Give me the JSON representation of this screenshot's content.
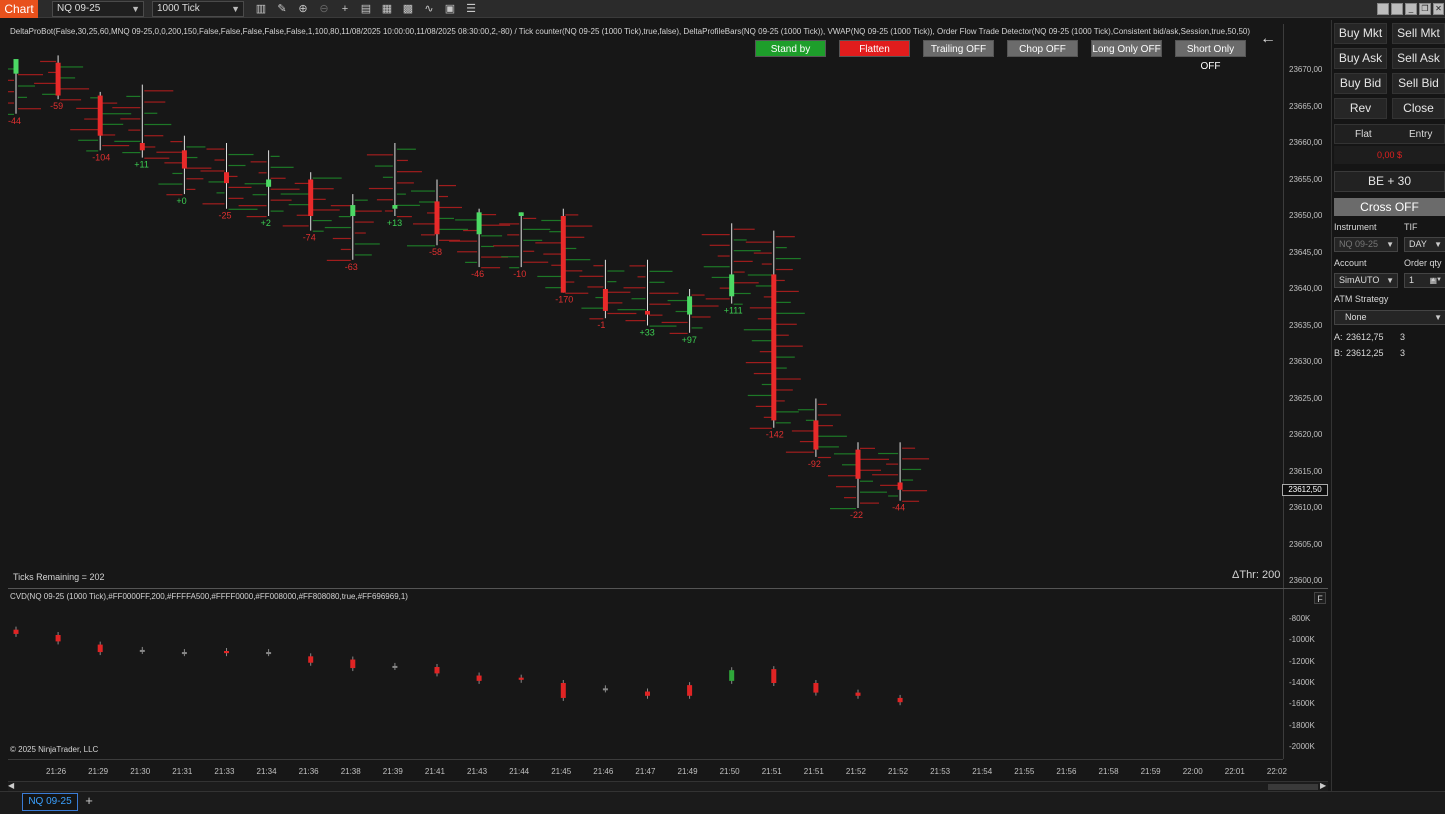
{
  "toolbar": {
    "chart_tab": "Chart",
    "instrument": "NQ 09-25",
    "interval": "1000 Tick"
  },
  "indicator_line": "DeltaProBot(False,30,25,60,MNQ 09-25,0,0,200,150,False,False,False,False,False,1,100,80,11/08/2025 10:00:00,11/08/2025 08:30:00,2,-80) / Tick counter(NQ 09-25 (1000 Tick),true,false), DeltaProfileBars(NQ 09-25 (1000 Tick)), VWAP(NQ 09-25 (1000 Tick)), Order Flow Trade Detector(NQ 09-25 (1000 Tick),Consistent bid/ask,Session,true,50,50)",
  "strategy_buttons": [
    {
      "label": "Stand by",
      "color": "#1e9e2b"
    },
    {
      "label": "Flatten",
      "color": "#e11d1d"
    },
    {
      "label": "Trailing OFF",
      "color": "#6b6b6b"
    },
    {
      "label": "Chop OFF",
      "color": "#6b6b6b"
    },
    {
      "label": "Long Only OFF",
      "color": "#6b6b6b"
    },
    {
      "label": "Short Only OFF",
      "color": "#6b6b6b"
    }
  ],
  "ticks_remaining": "Ticks Remaining = 202",
  "delta_threshold": "ΔThr: 200",
  "cvd_label": "CVD(NQ 09-25 (1000 Tick),#FF0000FF,200,#FFFFA500,#FFFF0000,#FF008000,#FF808080,true,#FF696969,1)",
  "copyright": "© 2025 NinjaTrader, LLC",
  "panel_collapse": "F",
  "price_axis": {
    "labels": [
      "23670,00",
      "23665,00",
      "23660,00",
      "23655,00",
      "23650,00",
      "23645,00",
      "23640,00",
      "23635,00",
      "23630,00",
      "23625,00",
      "23620,00",
      "23615,00",
      "23610,00",
      "23605,00",
      "23600,00"
    ],
    "current": "23612,50",
    "min": 23600,
    "max": 23670
  },
  "cvd_axis": {
    "labels": [
      "-800K",
      "-1000K",
      "-1200K",
      "-1400K",
      "-1600K",
      "-1800K",
      "-2000K"
    ],
    "min": -2000,
    "max": -800
  },
  "time_axis": [
    "21:26",
    "21:29",
    "21:30",
    "21:31",
    "21:33",
    "21:34",
    "21:36",
    "21:38",
    "21:39",
    "21:41",
    "21:43",
    "21:44",
    "21:45",
    "21:46",
    "21:47",
    "21:49",
    "21:50",
    "21:51",
    "21:51",
    "21:52",
    "21:52",
    "21:53",
    "21:54",
    "21:55",
    "21:56",
    "21:58",
    "21:59",
    "22:00",
    "22:01",
    "22:02"
  ],
  "candles": [
    {
      "o": 23669.5,
      "h": 23671,
      "l": 23664,
      "c": 23671.5,
      "d": "-44"
    },
    {
      "o": 23671,
      "h": 23672,
      "l": 23666,
      "c": 23666.5,
      "d": "-59"
    },
    {
      "o": 23666.5,
      "h": 23667,
      "l": 23659,
      "c": 23661,
      "d": "-104"
    },
    {
      "o": 23660,
      "h": 23668,
      "l": 23658,
      "c": 23659,
      "d": "+11"
    },
    {
      "o": 23659,
      "h": 23661,
      "l": 23653,
      "c": 23656.5,
      "d": "+0"
    },
    {
      "o": 23656,
      "h": 23660,
      "l": 23651,
      "c": 23654.5,
      "d": "-25"
    },
    {
      "o": 23654,
      "h": 23659,
      "l": 23650,
      "c": 23655,
      "d": "+2"
    },
    {
      "o": 23655,
      "h": 23656,
      "l": 23648,
      "c": 23650,
      "d": "-74"
    },
    {
      "o": 23650,
      "h": 23653,
      "l": 23644,
      "c": 23651.5,
      "d": "-63"
    },
    {
      "o": 23651,
      "h": 23660,
      "l": 23650,
      "c": 23651.5,
      "d": "+13"
    },
    {
      "o": 23652,
      "h": 23655,
      "l": 23646,
      "c": 23647.5,
      "d": "-58"
    },
    {
      "o": 23647.5,
      "h": 23651,
      "l": 23643,
      "c": 23650.5,
      "d": "-46"
    },
    {
      "o": 23650,
      "h": 23650.5,
      "l": 23643,
      "c": 23650.5,
      "d": "-10"
    },
    {
      "o": 23650,
      "h": 23651,
      "l": 23639.5,
      "c": 23639.5,
      "d": "-170"
    },
    {
      "o": 23640,
      "h": 23644,
      "l": 23636,
      "c": 23637,
      "d": "-1"
    },
    {
      "o": 23637,
      "h": 23644,
      "l": 23635,
      "c": 23636.5,
      "d": "+33"
    },
    {
      "o": 23636.5,
      "h": 23640,
      "l": 23634,
      "c": 23639,
      "d": "+97"
    },
    {
      "o": 23639,
      "h": 23649,
      "l": 23638,
      "c": 23642,
      "d": "+111"
    },
    {
      "o": 23642,
      "h": 23648,
      "l": 23621,
      "c": 23622,
      "d": "-142"
    },
    {
      "o": 23622,
      "h": 23625,
      "l": 23617,
      "c": 23618,
      "d": "-92"
    },
    {
      "o": 23618,
      "h": 23619,
      "l": 23610,
      "c": 23614,
      "d": "-22"
    },
    {
      "o": 23613.5,
      "h": 23619,
      "l": 23611,
      "c": 23612.5,
      "d": "-44"
    }
  ],
  "cvd_bars": [
    {
      "o": -900,
      "c": -940
    },
    {
      "o": -950,
      "c": -1010
    },
    {
      "o": -1040,
      "c": -1110
    },
    {
      "o": -1090,
      "c": -1100
    },
    {
      "o": -1110,
      "c": -1120
    },
    {
      "o": -1100,
      "c": -1120
    },
    {
      "o": -1110,
      "c": -1120
    },
    {
      "o": -1150,
      "c": -1210
    },
    {
      "o": -1180,
      "c": -1260
    },
    {
      "o": -1240,
      "c": -1250
    },
    {
      "o": -1250,
      "c": -1310
    },
    {
      "o": -1330,
      "c": -1380
    },
    {
      "o": -1350,
      "c": -1370
    },
    {
      "o": -1400,
      "c": -1540
    },
    {
      "o": -1450,
      "c": -1460
    },
    {
      "o": -1480,
      "c": -1520
    },
    {
      "o": -1420,
      "c": -1520
    },
    {
      "o": -1380,
      "c": -1280
    },
    {
      "o": -1270,
      "c": -1400
    },
    {
      "o": -1400,
      "c": -1490
    },
    {
      "o": -1490,
      "c": -1520
    },
    {
      "o": -1540,
      "c": -1580
    }
  ],
  "right_panel": {
    "buy_mkt": "Buy Mkt",
    "sell_mkt": "Sell Mkt",
    "buy_ask": "Buy Ask",
    "sell_ask": "Sell Ask",
    "buy_bid": "Buy Bid",
    "sell_bid": "Sell Bid",
    "rev": "Rev",
    "close": "Close",
    "flat": "Flat",
    "entry": "Entry",
    "pnl": "0,00 $",
    "be": "BE + 30",
    "cross": "Cross OFF",
    "instrument_label": "Instrument",
    "tif_label": "TIF",
    "instrument_value": "NQ 09-25",
    "tif_value": "DAY",
    "account_label": "Account",
    "qty_label": "Order qty",
    "account_value": "SimAUTO",
    "qty_value": "1",
    "atm_label": "ATM Strategy",
    "atm_value": "None",
    "ask_label": "A:",
    "ask_price": "23612,75",
    "ask_size": "3",
    "bid_label": "B:",
    "bid_price": "23612,25",
    "bid_size": "3"
  },
  "bottom_tab": "NQ 09-25",
  "bottom_add": "+",
  "colors": {
    "up": "#4cd964",
    "down": "#e82a2a",
    "bg": "#171717"
  }
}
